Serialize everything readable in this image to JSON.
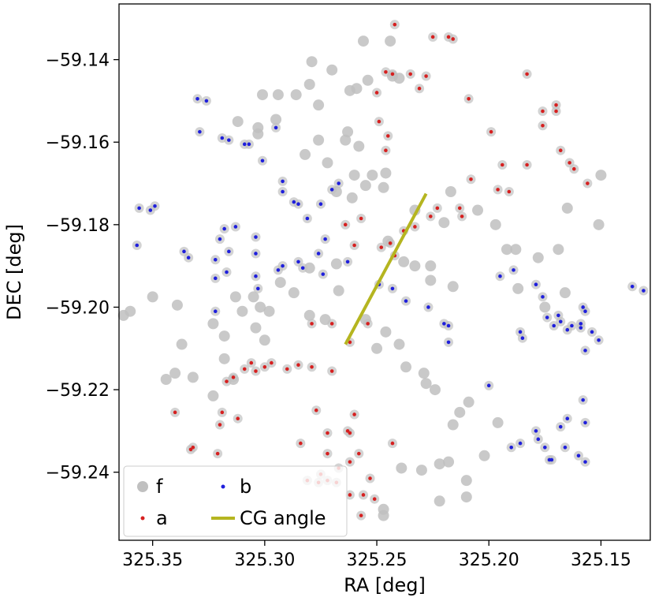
{
  "chart_data": {
    "type": "scatter",
    "xlabel": "RA [deg]",
    "ylabel": "DEC [deg]",
    "xlim": [
      325.365,
      325.128
    ],
    "ylim": [
      -59.2565,
      -59.1265
    ],
    "x_inverted": true,
    "xticks": [
      325.35,
      325.3,
      325.25,
      325.2,
      325.15
    ],
    "xtick_labels": [
      "325.35",
      "325.30",
      "325.25",
      "325.20",
      "325.15"
    ],
    "yticks": [
      -59.14,
      -59.16,
      -59.18,
      -59.2,
      -59.22,
      -59.24
    ],
    "ytick_labels": [
      "−59.14",
      "−59.16",
      "−59.18",
      "−59.20",
      "−59.22",
      "−59.24"
    ],
    "grid": false,
    "legend_position": "lower-left",
    "legend": [
      {
        "label": "f",
        "key": "f",
        "symbol": "circle"
      },
      {
        "label": "b",
        "key": "b",
        "symbol": "dot"
      },
      {
        "label": "a",
        "key": "a",
        "symbol": "dot"
      },
      {
        "label": "CG angle",
        "key": "cg",
        "symbol": "line"
      }
    ],
    "series": {
      "f": {
        "color": "#c0c0c0",
        "x": [
          325.244,
          325.256,
          325.279,
          325.243,
          325.24,
          325.301,
          325.294,
          325.295,
          325.286,
          325.28,
          325.276,
          325.27,
          325.262,
          325.259,
          325.254,
          325.252,
          325.246,
          325.247,
          325.276,
          325.264,
          325.258,
          325.255,
          325.268,
          325.261,
          325.233,
          325.22,
          325.217,
          325.245,
          325.238,
          325.233,
          325.226,
          325.216,
          325.205,
          325.197,
          325.192,
          325.188,
          325.178,
          325.169,
          325.15,
          325.165,
          325.151,
          325.187,
          325.175,
          325.166,
          325.268,
          325.28,
          325.287,
          325.293,
          325.305,
          325.302,
          325.313,
          325.31,
          325.318,
          325.323,
          325.339,
          325.35,
          325.36,
          325.363,
          325.318,
          325.314,
          325.323,
          325.332,
          325.34,
          325.344,
          325.337,
          325.28,
          325.273,
          325.267,
          325.255,
          325.246,
          325.24,
          325.237,
          325.229,
          325.228,
          325.224,
          325.213,
          325.209,
          325.196,
          325.202,
          325.21,
          325.218,
          325.222,
          325.23,
          325.239,
          325.247,
          325.216,
          325.222,
          325.21,
          325.247,
          325.263,
          325.26,
          325.312,
          325.303,
          325.303,
          325.282,
          325.272,
          325.226,
          325.304,
          325.298,
          325.3,
          325.25
        ],
        "y": [
          -59.1355,
          -59.1355,
          -59.1405,
          -59.144,
          -59.1445,
          -59.1485,
          -59.1485,
          -59.1545,
          -59.1485,
          -59.146,
          -59.151,
          -59.1425,
          -59.1475,
          -59.147,
          -59.145,
          -59.168,
          -59.1675,
          -59.171,
          -59.1595,
          -59.1595,
          -59.161,
          -59.1705,
          -59.172,
          -59.1735,
          -59.1765,
          -59.1795,
          -59.172,
          -59.184,
          -59.189,
          -59.19,
          -59.1935,
          -59.195,
          -59.1765,
          -59.18,
          -59.186,
          -59.186,
          -59.188,
          -59.186,
          -59.168,
          -59.176,
          -59.18,
          -59.1955,
          -59.2,
          -59.1965,
          -59.1895,
          -59.1905,
          -59.1965,
          -59.194,
          -59.1975,
          -59.2,
          -59.1975,
          -59.201,
          -59.207,
          -59.204,
          -59.1995,
          -59.1975,
          -59.201,
          -59.202,
          -59.2125,
          -59.2175,
          -59.2215,
          -59.217,
          -59.216,
          -59.2175,
          -59.209,
          -59.202,
          -59.203,
          -59.196,
          -59.203,
          -59.206,
          -59.209,
          -59.2145,
          -59.216,
          -59.2185,
          -59.22,
          -59.2255,
          -59.223,
          -59.228,
          -59.236,
          -59.242,
          -59.2375,
          -59.247,
          -59.2395,
          -59.239,
          -59.249,
          -59.2285,
          -59.238,
          -59.246,
          -59.2505,
          -59.1575,
          -59.168,
          -59.155,
          -59.1565,
          -59.158,
          -59.163,
          -59.165,
          -59.19,
          -59.205,
          -59.201,
          -59.208,
          -59.21
        ]
      },
      "b": {
        "color": "#1f1fdc",
        "x": [
          325.33,
          325.326,
          325.329,
          325.319,
          325.316,
          325.309,
          325.307,
          325.295,
          325.301,
          325.292,
          325.292,
          325.287,
          325.285,
          325.281,
          325.275,
          325.27,
          325.267,
          325.273,
          325.276,
          325.285,
          325.283,
          325.292,
          325.294,
          325.304,
          325.304,
          325.313,
          325.318,
          325.32,
          325.322,
          325.316,
          325.317,
          325.304,
          325.303,
          325.322,
          325.356,
          325.351,
          325.349,
          325.336,
          325.334,
          325.357,
          325.322,
          325.274,
          325.263,
          325.249,
          325.243,
          325.237,
          325.227,
          325.22,
          325.218,
          325.218,
          325.2,
          325.195,
          325.189,
          325.179,
          325.176,
          325.174,
          325.171,
          325.168,
          325.165,
          325.163,
          325.159,
          325.154,
          325.157,
          325.136,
          325.131,
          325.158,
          325.157,
          325.158,
          325.157,
          325.151,
          325.159,
          325.169,
          325.186,
          325.185,
          325.19,
          325.186,
          325.165,
          325.166,
          325.16,
          325.157,
          325.168,
          325.172,
          325.173,
          325.175,
          325.178,
          325.179
        ],
        "y": [
          -59.1495,
          -59.15,
          -59.1575,
          -59.159,
          -59.1595,
          -59.1605,
          -59.1605,
          -59.1565,
          -59.1645,
          -59.1695,
          -59.172,
          -59.1745,
          -59.175,
          -59.1785,
          -59.175,
          -59.1715,
          -59.17,
          -59.1835,
          -59.187,
          -59.189,
          -59.1905,
          -59.19,
          -59.191,
          -59.187,
          -59.183,
          -59.1805,
          -59.181,
          -59.1835,
          -59.1885,
          -59.1865,
          -59.1915,
          -59.1925,
          -59.1955,
          -59.201,
          -59.176,
          -59.1765,
          -59.1755,
          -59.1865,
          -59.188,
          -59.185,
          -59.193,
          -59.192,
          -59.189,
          -59.1945,
          -59.1955,
          -59.1985,
          -59.2,
          -59.204,
          -59.2045,
          -59.2085,
          -59.219,
          -59.1925,
          -59.191,
          -59.1945,
          -59.1975,
          -59.2025,
          -59.2045,
          -59.2035,
          -59.2055,
          -59.2045,
          -59.204,
          -59.206,
          -59.2105,
          -59.195,
          -59.196,
          -59.2,
          -59.201,
          -59.2225,
          -59.228,
          -59.208,
          -59.205,
          -59.202,
          -59.206,
          -59.2075,
          -59.234,
          -59.233,
          -59.227,
          -59.234,
          -59.236,
          -59.2375,
          -59.229,
          -59.237,
          -59.237,
          -59.234,
          -59.232,
          -59.23
        ]
      },
      "a": {
        "color": "#d62020",
        "x": [
          325.242,
          325.246,
          325.243,
          325.235,
          325.228,
          325.225,
          325.218,
          325.216,
          325.209,
          325.199,
          325.194,
          325.191,
          325.183,
          325.17,
          325.17,
          325.176,
          325.176,
          325.168,
          325.164,
          325.162,
          325.156,
          325.183,
          325.196,
          325.208,
          325.213,
          325.212,
          325.223,
          325.226,
          325.231,
          325.25,
          325.249,
          325.246,
          325.245,
          325.257,
          325.264,
          325.26,
          325.248,
          325.244,
          325.233,
          325.238,
          325.242,
          325.254,
          325.262,
          325.27,
          325.279,
          325.27,
          325.279,
          325.285,
          325.29,
          325.297,
          325.3,
          325.304,
          325.306,
          325.309,
          325.314,
          325.317,
          325.319,
          325.312,
          325.32,
          325.321,
          325.332,
          325.333,
          325.34,
          325.277,
          325.26,
          325.262,
          325.263,
          325.272,
          325.284,
          325.272,
          325.258,
          325.243,
          325.262,
          325.267,
          325.275,
          325.281,
          325.276,
          325.272,
          325.268,
          325.262,
          325.257,
          325.251,
          325.253,
          325.256
        ],
        "y": [
          -59.1315,
          -59.143,
          -59.1435,
          -59.1435,
          -59.144,
          -59.1345,
          -59.1345,
          -59.135,
          -59.1495,
          -59.1575,
          -59.1655,
          -59.172,
          -59.1435,
          -59.151,
          -59.1525,
          -59.1525,
          -59.156,
          -59.162,
          -59.165,
          -59.1665,
          -59.17,
          -59.1655,
          -59.1715,
          -59.169,
          -59.176,
          -59.178,
          -59.176,
          -59.178,
          -59.147,
          -59.148,
          -59.155,
          -59.162,
          -59.1585,
          -59.1785,
          -59.18,
          -59.185,
          -59.1855,
          -59.1845,
          -59.1805,
          -59.1815,
          -59.1875,
          -59.204,
          -59.2085,
          -59.204,
          -59.204,
          -59.2155,
          -59.2145,
          -59.214,
          -59.215,
          -59.2135,
          -59.2145,
          -59.2155,
          -59.2135,
          -59.215,
          -59.217,
          -59.218,
          -59.2255,
          -59.227,
          -59.2285,
          -59.2355,
          -59.234,
          -59.2345,
          -59.2255,
          -59.225,
          -59.226,
          -59.2305,
          -59.23,
          -59.2305,
          -59.233,
          -59.2355,
          -59.2355,
          -59.233,
          -59.2375,
          -59.239,
          -59.2405,
          -59.242,
          -59.2425,
          -59.242,
          -59.2425,
          -59.2455,
          -59.2505,
          -59.2465,
          -59.2415,
          -59.2455
        ]
      }
    },
    "cg_angle": {
      "color": "#b5b520",
      "x": [
        325.264,
        325.228
      ],
      "y": [
        -59.209,
        -59.1725
      ]
    }
  }
}
